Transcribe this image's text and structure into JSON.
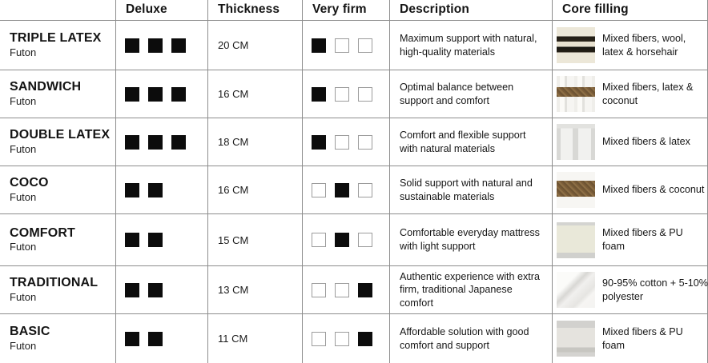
{
  "table": {
    "headers": [
      "",
      "Deluxe",
      "Thickness",
      "Very firm",
      "Description",
      "Core filling"
    ]
  },
  "firmness_scale": {
    "total": 3
  },
  "deluxe_scale": {
    "total": 3
  },
  "colors": {
    "square_filled": "#0c0c0c",
    "square_empty_border": "#9c9c9c",
    "grid_line": "#8d8d8d",
    "coconut_brown": "#8c6e45",
    "wool_cream": "#ece7d8"
  },
  "rows": [
    {
      "name": "TRIPLE LATEX",
      "subtitle": "Futon",
      "deluxe_filled": 3,
      "thickness": "20 CM",
      "firm_index": 0,
      "description": "Maximum support with natural, high-quality materials",
      "core_filling": "Mixed fibers, wool, latex & horsehair",
      "swatch": "wool-horsehair"
    },
    {
      "name": "SANDWICH",
      "subtitle": "Futon",
      "deluxe_filled": 3,
      "thickness": "16 CM",
      "firm_index": 0,
      "description": "Optimal balance between support and comfort",
      "core_filling": "Mixed fibers, latex & coconut",
      "swatch": "latex-coconut"
    },
    {
      "name": "DOUBLE LATEX",
      "subtitle": "Futon",
      "deluxe_filled": 3,
      "thickness": "18 CM",
      "firm_index": 0,
      "description": "Comfort and flexible support with natural materials",
      "core_filling": "Mixed fibers & latex",
      "swatch": "latex"
    },
    {
      "name": "COCO",
      "subtitle": "Futon",
      "deluxe_filled": 2,
      "thickness": "16 CM",
      "firm_index": 1,
      "description": "Solid support with natural and sustainable materials",
      "core_filling": "Mixed fibers & coconut",
      "swatch": "coconut"
    },
    {
      "name": "COMFORT",
      "subtitle": "Futon",
      "deluxe_filled": 2,
      "thickness": "15 CM",
      "firm_index": 1,
      "description": "Comfortable everyday mattress with light support",
      "core_filling": "Mixed fibers & PU foam",
      "swatch": "pu-foam-cream"
    },
    {
      "name": "TRADITIONAL",
      "subtitle": "Futon",
      "deluxe_filled": 2,
      "thickness": "13 CM",
      "firm_index": 2,
      "description": "Authentic experience with extra firm, traditional Japanese comfort",
      "core_filling": "90-95% cotton + 5-10% polyester",
      "swatch": "cotton"
    },
    {
      "name": "BASIC",
      "subtitle": "Futon",
      "deluxe_filled": 2,
      "thickness": "11 CM",
      "firm_index": 2,
      "description": "Affordable solution with good comfort and support",
      "core_filling": "Mixed fibers & PU foam",
      "swatch": "pu-foam-grey"
    }
  ]
}
